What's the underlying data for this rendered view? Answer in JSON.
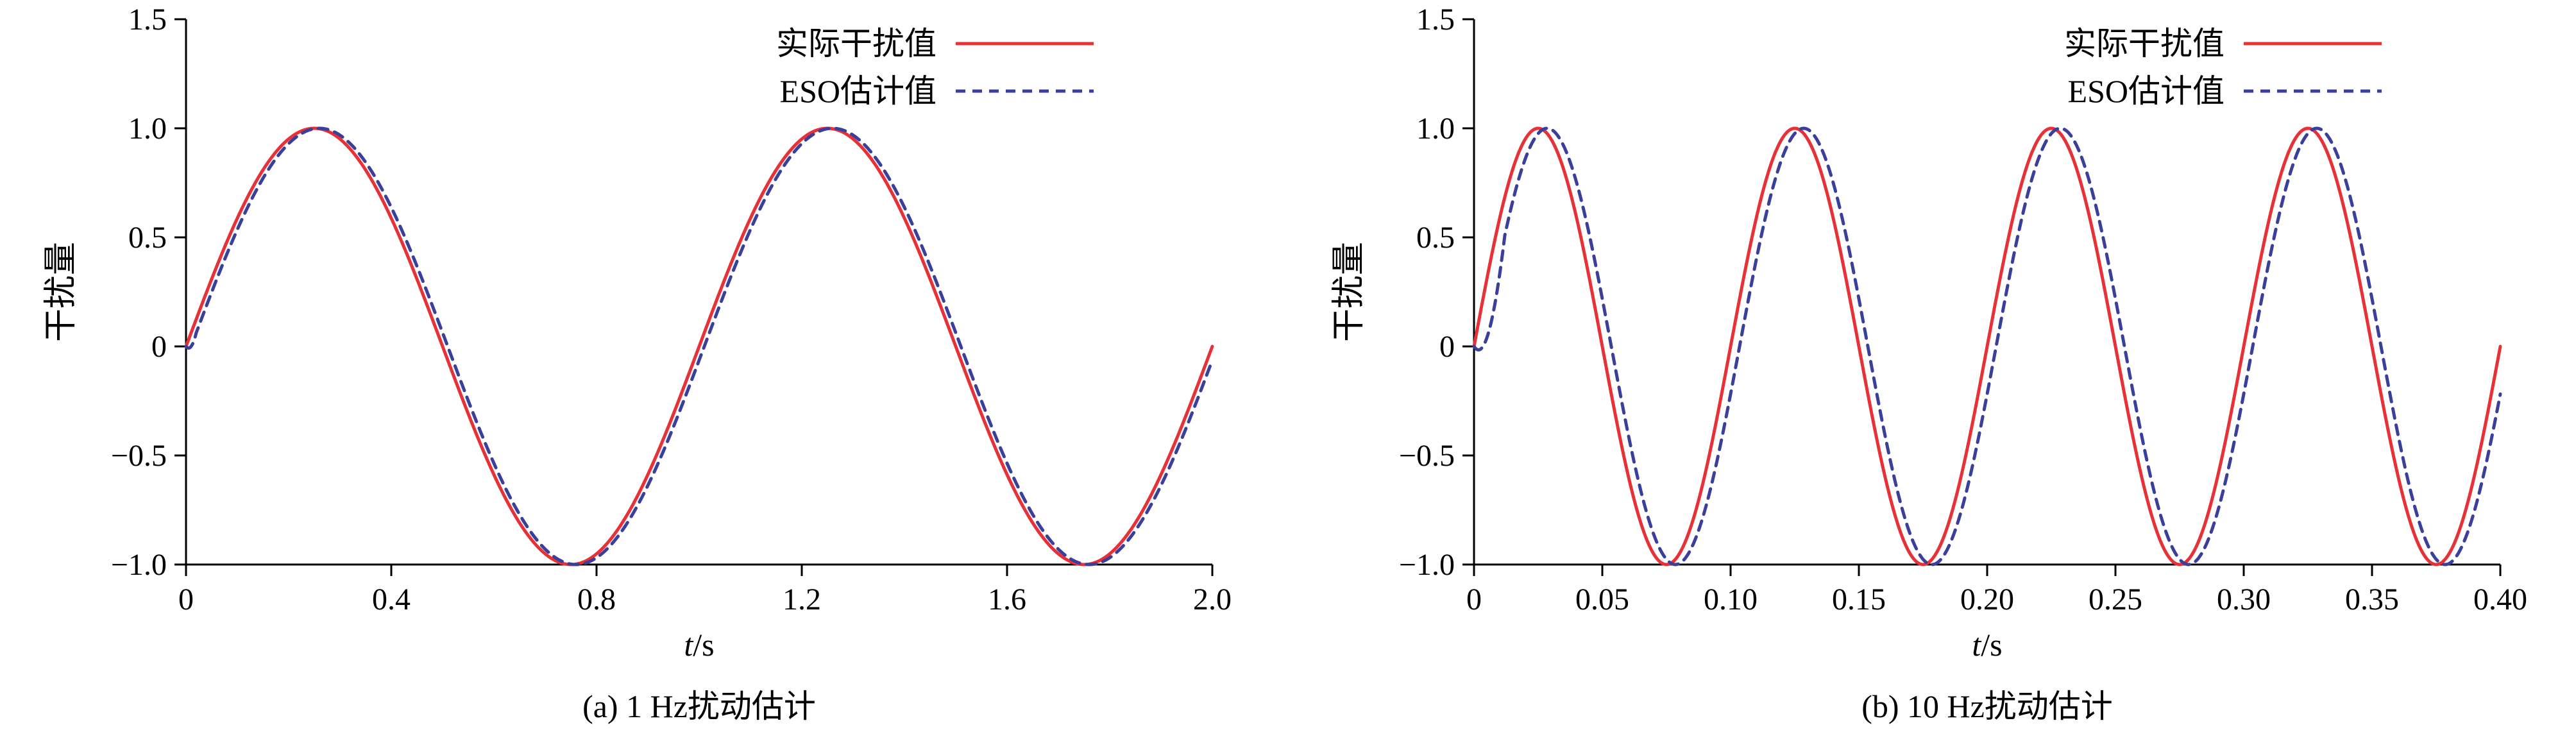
{
  "figure": {
    "background": "#ffffff",
    "axis_color": "#000000",
    "text_color": "#000000"
  },
  "chart_data": [
    {
      "id": "a",
      "type": "line",
      "caption": "(a) 1 Hz扰动估计",
      "xlabel_var": "t",
      "xlabel_unit": "/s",
      "ylabel": "干扰量",
      "xlim": [
        0,
        2.0
      ],
      "ylim": [
        -1.0,
        1.5
      ],
      "grid": false,
      "legend_position": "top-right",
      "xticks": [
        {
          "v": 0,
          "label": "0"
        },
        {
          "v": 0.4,
          "label": "0.4"
        },
        {
          "v": 0.8,
          "label": "0.8"
        },
        {
          "v": 1.2,
          "label": "1.2"
        },
        {
          "v": 1.6,
          "label": "1.6"
        },
        {
          "v": 2.0,
          "label": "2.0"
        }
      ],
      "yticks": [
        {
          "v": 1.5,
          "label": "1.5"
        },
        {
          "v": 1.0,
          "label": "1.0"
        },
        {
          "v": 0.5,
          "label": "0.5"
        },
        {
          "v": 0,
          "label": "0"
        },
        {
          "v": -0.5,
          "label": "−0.5"
        },
        {
          "v": -1.0,
          "label": "−1.0"
        }
      ],
      "series": [
        {
          "name": "实际干扰值",
          "color": "#e73137",
          "style": "solid",
          "signal": {
            "kind": "sine",
            "amplitude": 1.0,
            "frequency_hz": 1.0,
            "lag_s": 0.0,
            "startup_ramp_s": 0.0
          }
        },
        {
          "name": "ESO估计值",
          "color": "#3a3f9c",
          "style": "dashed",
          "signal": {
            "kind": "sine",
            "amplitude": 1.0,
            "frequency_hz": 1.0,
            "lag_s": 0.01,
            "startup_ramp_s": 0.02
          }
        }
      ]
    },
    {
      "id": "b",
      "type": "line",
      "caption": "(b) 10 Hz扰动估计",
      "xlabel_var": "t",
      "xlabel_unit": "/s",
      "ylabel": "干扰量",
      "xlim": [
        0,
        0.4
      ],
      "ylim": [
        -1.0,
        1.5
      ],
      "grid": false,
      "legend_position": "top-right",
      "xticks": [
        {
          "v": 0,
          "label": "0"
        },
        {
          "v": 0.05,
          "label": "0.05"
        },
        {
          "v": 0.1,
          "label": "0.10"
        },
        {
          "v": 0.15,
          "label": "0.15"
        },
        {
          "v": 0.2,
          "label": "0.20"
        },
        {
          "v": 0.25,
          "label": "0.25"
        },
        {
          "v": 0.3,
          "label": "0.30"
        },
        {
          "v": 0.35,
          "label": "0.35"
        },
        {
          "v": 0.4,
          "label": "0.40"
        }
      ],
      "yticks": [
        {
          "v": 1.5,
          "label": "1.5"
        },
        {
          "v": 1.0,
          "label": "1.0"
        },
        {
          "v": 0.5,
          "label": "0.5"
        },
        {
          "v": 0,
          "label": "0"
        },
        {
          "v": -0.5,
          "label": "−0.5"
        },
        {
          "v": -1.0,
          "label": "−1.0"
        }
      ],
      "series": [
        {
          "name": "实际干扰值",
          "color": "#e73137",
          "style": "solid",
          "signal": {
            "kind": "sine",
            "amplitude": 1.0,
            "frequency_hz": 10.0,
            "lag_s": 0.0,
            "startup_ramp_s": 0.0
          }
        },
        {
          "name": "ESO估计值",
          "color": "#3a3f9c",
          "style": "dashed",
          "signal": {
            "kind": "sine",
            "amplitude": 1.0,
            "frequency_hz": 10.0,
            "lag_s": 0.0035,
            "startup_ramp_s": 0.012
          }
        }
      ]
    }
  ]
}
